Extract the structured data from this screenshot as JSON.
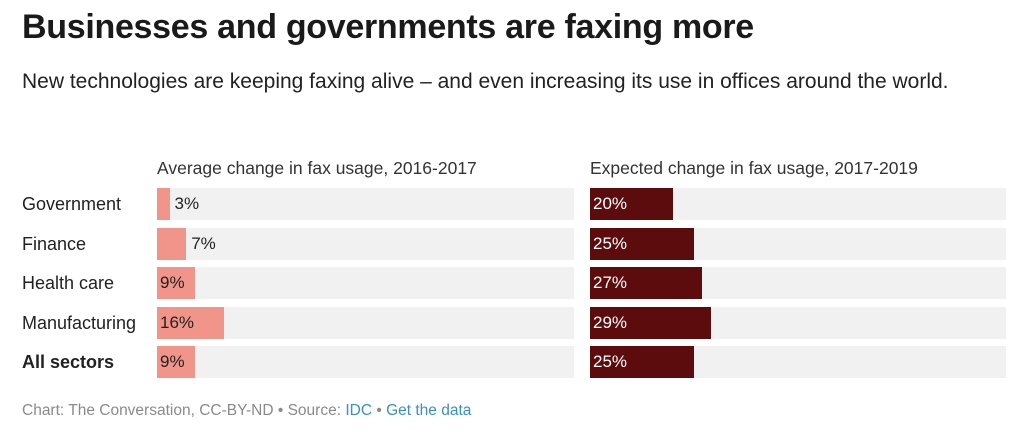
{
  "title": "Businesses and governments are faxing more",
  "subtitle": "New technologies are keeping faxing alive – and even increasing its use in offices around the world.",
  "footer": {
    "chart_credit": "Chart: The Conversation, CC-BY-ND",
    "separator": " • ",
    "source_prefix": "Source: ",
    "source_link": "IDC",
    "get_data": "Get the data"
  },
  "colors": {
    "left_bar": "#f1948a",
    "right_bar": "#5c0c0c",
    "track": "#f1f1f1",
    "link": "#3a8fc7"
  },
  "chart_data": {
    "type": "bar",
    "categories": [
      "Government",
      "Finance",
      "Health care",
      "Manufacturing",
      "All sectors"
    ],
    "bold_categories": [
      "All sectors"
    ],
    "series": [
      {
        "name": "Average change in fax usage, 2016-2017",
        "values": [
          3,
          7,
          9,
          16,
          9
        ],
        "labels": [
          "3%",
          "7%",
          "9%",
          "16%",
          "9%"
        ]
      },
      {
        "name": "Expected change in fax usage, 2017-2019",
        "values": [
          20,
          25,
          27,
          29,
          25
        ],
        "labels": [
          "20%",
          "25%",
          "27%",
          "29%",
          "25%"
        ]
      }
    ],
    "xlim": [
      0,
      100
    ],
    "orientation": "horizontal",
    "grid": false
  }
}
